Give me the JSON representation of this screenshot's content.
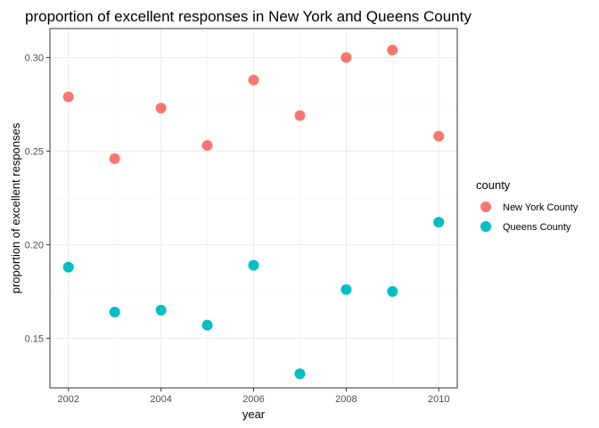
{
  "chart_data": {
    "type": "scatter",
    "title": "proportion of excellent responses in New York and Queens County",
    "xlabel": "year",
    "ylabel": "proportion of excellent responses",
    "xlim": [
      2001.6,
      2010.4
    ],
    "ylim": [
      0.1235,
      0.3155
    ],
    "x_ticks": [
      2002,
      2004,
      2006,
      2008,
      2010
    ],
    "x_tick_labels": [
      "2002",
      "2004",
      "2006",
      "2008",
      "2010"
    ],
    "y_ticks": [
      0.15,
      0.2,
      0.25,
      0.3
    ],
    "y_tick_labels": [
      "0.15",
      "0.20",
      "0.25",
      "0.30"
    ],
    "grid": true,
    "legend": {
      "title": "county",
      "position": "right"
    },
    "series": [
      {
        "name": "New York County",
        "color": "#F8766D",
        "x": [
          2002,
          2003,
          2004,
          2005,
          2006,
          2007,
          2008,
          2009,
          2010
        ],
        "y": [
          0.279,
          0.246,
          0.273,
          0.253,
          0.288,
          0.269,
          0.3,
          0.304,
          0.258
        ]
      },
      {
        "name": "Queens County",
        "color": "#00BFC4",
        "x": [
          2002,
          2003,
          2004,
          2005,
          2006,
          2007,
          2008,
          2009,
          2010
        ],
        "y": [
          0.188,
          0.164,
          0.165,
          0.157,
          0.189,
          0.131,
          0.176,
          0.175,
          0.212
        ]
      }
    ]
  }
}
